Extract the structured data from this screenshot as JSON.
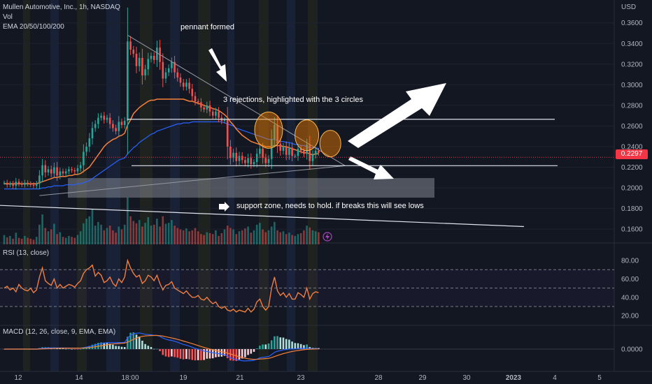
{
  "legend": {
    "symbol": "Mullen Automotive, Inc., 1h, NASDAQ",
    "volume": "Vol",
    "ema": "EMA 20/50/100/200",
    "rsi": "RSI (13, close)",
    "macd": "MACD (12, 26, close, 9, EMA, EMA)"
  },
  "annotations": {
    "pennant": "pennant formed",
    "rejections": "3 rejections, highlighted with the 3 circles",
    "support": "support zone, needs to hold. if breaks this will see lows"
  },
  "colors": {
    "background": "#131722",
    "up": "#26a69a",
    "down": "#ef5350",
    "ema20": "#f7813b",
    "ema50": "#2962ff",
    "rsi": "#f7813b",
    "current_price": "#f23645"
  },
  "chart_data": [
    {
      "type": "candlestick",
      "currency": "USD",
      "current_price": "0.2297",
      "y_ticks": [
        "0.3600",
        "0.3400",
        "0.3200",
        "0.3000",
        "0.2800",
        "0.2600",
        "0.2400",
        "0.2200",
        "0.2000",
        "0.1800",
        "0.1600"
      ],
      "ylim": [
        0.152,
        0.372
      ],
      "x_ticks": [
        "12",
        "14",
        "18:00",
        "19",
        "21",
        "23",
        "28",
        "29",
        "30",
        "2023",
        "4",
        "5"
      ],
      "close": [
        0.205,
        0.203,
        0.204,
        0.202,
        0.206,
        0.204,
        0.203,
        0.205,
        0.204,
        0.203,
        0.202,
        0.204,
        0.212,
        0.222,
        0.215,
        0.218,
        0.214,
        0.22,
        0.212,
        0.216,
        0.214,
        0.216,
        0.218,
        0.217,
        0.216,
        0.219,
        0.222,
        0.235,
        0.24,
        0.248,
        0.258,
        0.262,
        0.268,
        0.27,
        0.266,
        0.268,
        0.262,
        0.258,
        0.255,
        0.264,
        0.261,
        0.265,
        0.342,
        0.334,
        0.33,
        0.318,
        0.326,
        0.309,
        0.315,
        0.325,
        0.328,
        0.324,
        0.336,
        0.322,
        0.306,
        0.312,
        0.316,
        0.322,
        0.312,
        0.307,
        0.302,
        0.298,
        0.302,
        0.296,
        0.289,
        0.284,
        0.283,
        0.278,
        0.276,
        0.28,
        0.274,
        0.27,
        0.274,
        0.268,
        0.265,
        0.266,
        0.24,
        0.229,
        0.234,
        0.226,
        0.231,
        0.227,
        0.224,
        0.229,
        0.223,
        0.225,
        0.233,
        0.238,
        0.229,
        0.224,
        0.228,
        0.247,
        0.261,
        0.243,
        0.236,
        0.24,
        0.232,
        0.239,
        0.231,
        0.231,
        0.238,
        0.236,
        0.233,
        0.242,
        0.226,
        0.232,
        0.236,
        0.234
      ],
      "volume_range": [
        0,
        100
      ],
      "volume": [
        20,
        15,
        18,
        12,
        25,
        14,
        12,
        18,
        14,
        12,
        10,
        16,
        42,
        64,
        35,
        28,
        32,
        44,
        22,
        26,
        16,
        14,
        18,
        16,
        14,
        20,
        28,
        45,
        55,
        60,
        75,
        40,
        48,
        42,
        30,
        35,
        40,
        30,
        25,
        38,
        32,
        42,
        100,
        60,
        50,
        45,
        52,
        38,
        46,
        58,
        40,
        42,
        55,
        38,
        60,
        44,
        46,
        52,
        40,
        35,
        32,
        30,
        34,
        28,
        30,
        35,
        28,
        22,
        20,
        26,
        24,
        22,
        30,
        18,
        24,
        32,
        40,
        35,
        32,
        22,
        28,
        30,
        34,
        38,
        25,
        30,
        42,
        46,
        32,
        26,
        30,
        38,
        48,
        30,
        26,
        28,
        22,
        25,
        20,
        18,
        22,
        24,
        30,
        40,
        36,
        30,
        28,
        26
      ],
      "ema20": [
        0.204,
        0.204,
        0.204,
        0.204,
        0.204,
        0.204,
        0.204,
        0.204,
        0.204,
        0.204,
        0.204,
        0.204,
        0.205,
        0.206,
        0.207,
        0.208,
        0.209,
        0.21,
        0.21,
        0.211,
        0.211,
        0.211,
        0.212,
        0.212,
        0.213,
        0.213,
        0.214,
        0.216,
        0.218,
        0.22,
        0.224,
        0.228,
        0.232,
        0.236,
        0.24,
        0.243,
        0.245,
        0.247,
        0.248,
        0.25,
        0.251,
        0.253,
        0.261,
        0.266,
        0.272,
        0.275,
        0.278,
        0.28,
        0.282,
        0.284,
        0.285,
        0.285,
        0.286,
        0.286,
        0.286,
        0.286,
        0.286,
        0.286,
        0.286,
        0.286,
        0.286,
        0.286,
        0.285,
        0.284,
        0.284,
        0.283,
        0.282,
        0.281,
        0.28,
        0.279,
        0.278,
        0.277,
        0.276,
        0.275,
        0.273,
        0.271,
        0.268,
        0.264,
        0.261,
        0.257,
        0.254,
        0.251,
        0.249,
        0.247,
        0.245,
        0.244,
        0.243,
        0.242,
        0.241,
        0.24,
        0.24,
        0.24,
        0.241,
        0.241,
        0.241,
        0.24,
        0.24,
        0.239,
        0.238,
        0.237,
        0.236,
        0.235,
        0.234,
        0.234,
        0.233,
        0.232,
        0.233,
        0.233
      ],
      "ema50": [
        0.199,
        0.199,
        0.199,
        0.199,
        0.199,
        0.199,
        0.199,
        0.199,
        0.199,
        0.199,
        0.199,
        0.199,
        0.199,
        0.2,
        0.2,
        0.201,
        0.201,
        0.202,
        0.202,
        0.202,
        0.202,
        0.203,
        0.203,
        0.203,
        0.203,
        0.204,
        0.204,
        0.205,
        0.206,
        0.207,
        0.209,
        0.211,
        0.213,
        0.215,
        0.217,
        0.219,
        0.221,
        0.223,
        0.225,
        0.227,
        0.228,
        0.229,
        0.233,
        0.236,
        0.239,
        0.241,
        0.244,
        0.246,
        0.248,
        0.25,
        0.252,
        0.253,
        0.255,
        0.256,
        0.257,
        0.258,
        0.259,
        0.26,
        0.261,
        0.262,
        0.262,
        0.263,
        0.263,
        0.263,
        0.264,
        0.264,
        0.264,
        0.264,
        0.264,
        0.264,
        0.264,
        0.264,
        0.264,
        0.264,
        0.264,
        0.263,
        0.262,
        0.261,
        0.26,
        0.258,
        0.257,
        0.256,
        0.255,
        0.254,
        0.253,
        0.252,
        0.251,
        0.25,
        0.249,
        0.248,
        0.247,
        0.247,
        0.247,
        0.246,
        0.245,
        0.245,
        0.244,
        0.244,
        0.243,
        0.242,
        0.242,
        0.241,
        0.241,
        0.24,
        0.239,
        0.239,
        0.239,
        0.238
      ]
    },
    {
      "type": "line",
      "name": "RSI",
      "y_ticks": [
        "80.00",
        "60.00",
        "40.00",
        "20.00"
      ],
      "ylim": [
        11,
        93
      ],
      "values": [
        50,
        52,
        48,
        50,
        46,
        54,
        50,
        48,
        47,
        50,
        45,
        48,
        62,
        72,
        58,
        55,
        53,
        60,
        50,
        54,
        50,
        52,
        54,
        53,
        51,
        55,
        58,
        66,
        70,
        72,
        75,
        63,
        67,
        64,
        56,
        58,
        62,
        55,
        52,
        60,
        56,
        62,
        80,
        72,
        66,
        62,
        64,
        55,
        58,
        64,
        62,
        58,
        64,
        55,
        48,
        53,
        54,
        57,
        50,
        48,
        46,
        44,
        47,
        43,
        40,
        40,
        42,
        38,
        37,
        40,
        36,
        33,
        35,
        30,
        28,
        30,
        26,
        25,
        27,
        24,
        26,
        25,
        24,
        28,
        24,
        27,
        35,
        38,
        30,
        26,
        30,
        50,
        62,
        47,
        42,
        45,
        40,
        44,
        38,
        38,
        45,
        43,
        40,
        50,
        38,
        44,
        46,
        45
      ]
    },
    {
      "type": "bar",
      "name": "MACD",
      "y_ticks": [
        "0.0000"
      ],
      "ylim": [
        -0.03,
        0.03
      ],
      "macd": [
        0.0,
        0.0,
        0.0,
        0.0,
        0.0,
        0.0,
        0.0,
        0.0,
        0.0,
        0.0,
        0.0,
        0.0,
        0.0006,
        0.0012,
        0.0014,
        0.0016,
        0.0016,
        0.0018,
        0.0017,
        0.0017,
        0.0016,
        0.0015,
        0.0015,
        0.0014,
        0.0013,
        0.0013,
        0.0014,
        0.002,
        0.0028,
        0.0036,
        0.0048,
        0.0058,
        0.007,
        0.008,
        0.0086,
        0.0092,
        0.0094,
        0.0094,
        0.0092,
        0.0094,
        0.0094,
        0.0096,
        0.016,
        0.0198,
        0.022,
        0.0226,
        0.0232,
        0.0222,
        0.0212,
        0.0208,
        0.0204,
        0.0196,
        0.0196,
        0.0182,
        0.0158,
        0.0142,
        0.013,
        0.0124,
        0.0112,
        0.0098,
        0.0082,
        0.0066,
        0.0056,
        0.0042,
        0.0026,
        0.001,
        -0.0002,
        -0.0016,
        -0.0028,
        -0.0034,
        -0.0044,
        -0.0054,
        -0.0058,
        -0.0066,
        -0.0074,
        -0.0078,
        -0.01,
        -0.0124,
        -0.0138,
        -0.0154,
        -0.016,
        -0.0166,
        -0.017,
        -0.0166,
        -0.0166,
        -0.016,
        -0.0144,
        -0.0126,
        -0.0118,
        -0.0114,
        -0.0106,
        -0.008,
        -0.0046,
        -0.003,
        -0.0022,
        -0.001,
        -0.0006,
        0.0002,
        0.0002,
        0.0002,
        0.0008,
        0.001,
        0.001,
        0.0018,
        0.0008,
        0.0006,
        0.0008,
        0.0008
      ],
      "signal": [
        0.0,
        0.0,
        0.0,
        0.0,
        0.0,
        0.0,
        0.0,
        0.0,
        0.0,
        0.0,
        0.0,
        0.0,
        0.0001,
        0.0003,
        0.0005,
        0.0007,
        0.0009,
        0.001,
        0.0012,
        0.0013,
        0.0013,
        0.0014,
        0.0014,
        0.0014,
        0.0014,
        0.0014,
        0.0014,
        0.0015,
        0.0018,
        0.0021,
        0.0027,
        0.0033,
        0.004,
        0.0048,
        0.0055,
        0.0062,
        0.0068,
        0.0073,
        0.0077,
        0.008,
        0.0083,
        0.0086,
        0.0101,
        0.012,
        0.014,
        0.0157,
        0.0172,
        0.0182,
        0.0188,
        0.0192,
        0.0194,
        0.0195,
        0.0195,
        0.0192,
        0.0186,
        0.0177,
        0.0168,
        0.0159,
        0.015,
        0.0139,
        0.0128,
        0.0115,
        0.0103,
        0.0091,
        0.0078,
        0.0064,
        0.0051,
        0.0037,
        0.0024,
        0.0012,
        0.0001,
        -0.001,
        -0.0019,
        -0.0029,
        -0.0038,
        -0.0046,
        -0.0057,
        -0.007,
        -0.0083,
        -0.0097,
        -0.011,
        -0.0121,
        -0.0131,
        -0.0138,
        -0.0144,
        -0.0147,
        -0.0147,
        -0.0142,
        -0.014,
        -0.0136,
        -0.0133,
        -0.0122,
        -0.0107,
        -0.0092,
        -0.0078,
        -0.0065,
        -0.0054,
        -0.0043,
        -0.0034,
        -0.0027,
        -0.002,
        -0.0014,
        -0.0009,
        -0.0004,
        -0.0002,
        0.0,
        0.0002,
        0.0003
      ]
    }
  ]
}
